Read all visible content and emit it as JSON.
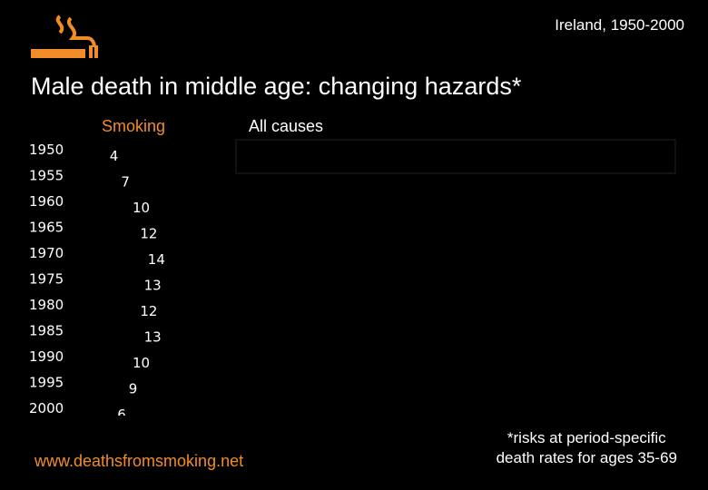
{
  "header": {
    "region": "Ireland, 1950-2000",
    "title": "Male death in middle age: changing hazards*",
    "logo_icon": "smoking-cigarette-icon"
  },
  "legend": {
    "smoking": "Smoking",
    "all_causes": "All causes"
  },
  "colors": {
    "accent": "#f28c28",
    "background": "#000000",
    "text": "#ffffff"
  },
  "chart_data": {
    "type": "bar",
    "orientation": "horizontal",
    "categories": [
      "1950",
      "1955",
      "1960",
      "1965",
      "1970",
      "1975",
      "1980",
      "1985",
      "1990",
      "1995",
      "2000"
    ],
    "series": [
      {
        "name": "Smoking",
        "values": [
          4,
          7,
          10,
          12,
          14,
          13,
          12,
          13,
          10,
          9,
          6
        ]
      }
    ],
    "data_labels": true
  },
  "footer": {
    "website": "www.deathsfromsmoking.net",
    "footnote_line1": "*risks at period-specific",
    "footnote_line2": "death rates for ages 35-69"
  }
}
